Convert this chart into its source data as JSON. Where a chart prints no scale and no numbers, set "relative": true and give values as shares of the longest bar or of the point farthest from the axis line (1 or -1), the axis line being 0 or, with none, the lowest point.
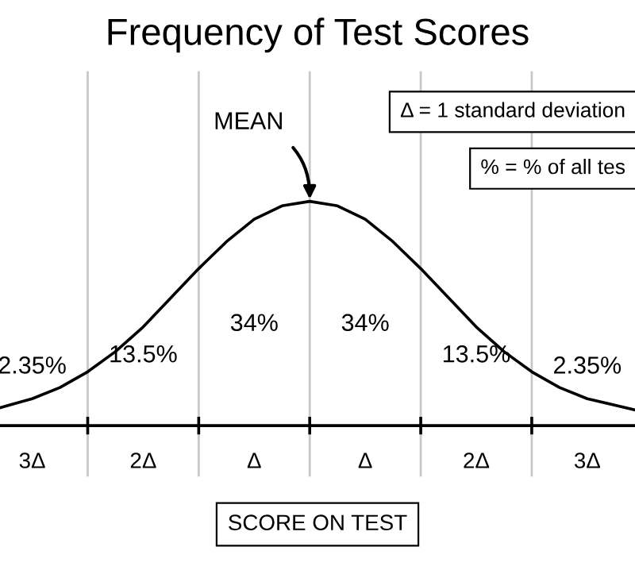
{
  "chart_data": {
    "type": "line",
    "relative": true,
    "title": "Frequency of Test Scores",
    "xlabel": "SCORE ON TEST",
    "color": "#000000",
    "x": [
      -2.79,
      -2.5,
      -2.25,
      -2,
      -1.75,
      -1.5,
      -1.25,
      -1,
      -0.75,
      -0.5,
      -0.25,
      0,
      0.25,
      0.5,
      0.75,
      1,
      1.25,
      1.5,
      1.75,
      2,
      2.25,
      2.5,
      2.93
    ],
    "values": [
      0.08,
      0.12,
      0.17,
      0.24,
      0.33,
      0.44,
      0.57,
      0.7,
      0.82,
      0.92,
      0.98,
      1.0,
      0.98,
      0.92,
      0.82,
      0.7,
      0.57,
      0.44,
      0.33,
      0.24,
      0.17,
      0.12,
      0.07
    ],
    "xlim": [
      -2.79,
      2.93
    ],
    "xticks": [
      {
        "value": -2,
        "label": null
      },
      {
        "value": -1,
        "label": null
      },
      {
        "value": 0,
        "label": null
      },
      {
        "value": 1,
        "label": null
      },
      {
        "value": 2,
        "label": null
      },
      {
        "value": -2.5,
        "label": "3Δ"
      },
      {
        "value": -1.5,
        "label": "2Δ"
      },
      {
        "value": -0.5,
        "label": "Δ"
      },
      {
        "value": 0.5,
        "label": "Δ"
      },
      {
        "value": 1.5,
        "label": "2Δ"
      },
      {
        "value": 2.5,
        "label": "3Δ"
      }
    ],
    "ref_lines": [
      {
        "axis": "x",
        "value": -2,
        "color": "#c8c8c8"
      },
      {
        "axis": "x",
        "value": -1,
        "color": "#c8c8c8"
      },
      {
        "axis": "x",
        "value": 0,
        "color": "#c8c8c8"
      },
      {
        "axis": "x",
        "value": 1,
        "color": "#c8c8c8"
      },
      {
        "axis": "x",
        "value": 2,
        "color": "#c8c8c8"
      }
    ],
    "annotations": [
      {
        "text": "MEAN",
        "x": 0,
        "y": 1
      },
      "2.35%",
      "13.5%",
      "34%",
      "34%",
      "13.5%",
      "2.35%",
      "Δ = 1 standard deviation",
      "% = % of all tes"
    ],
    "grid": false
  }
}
